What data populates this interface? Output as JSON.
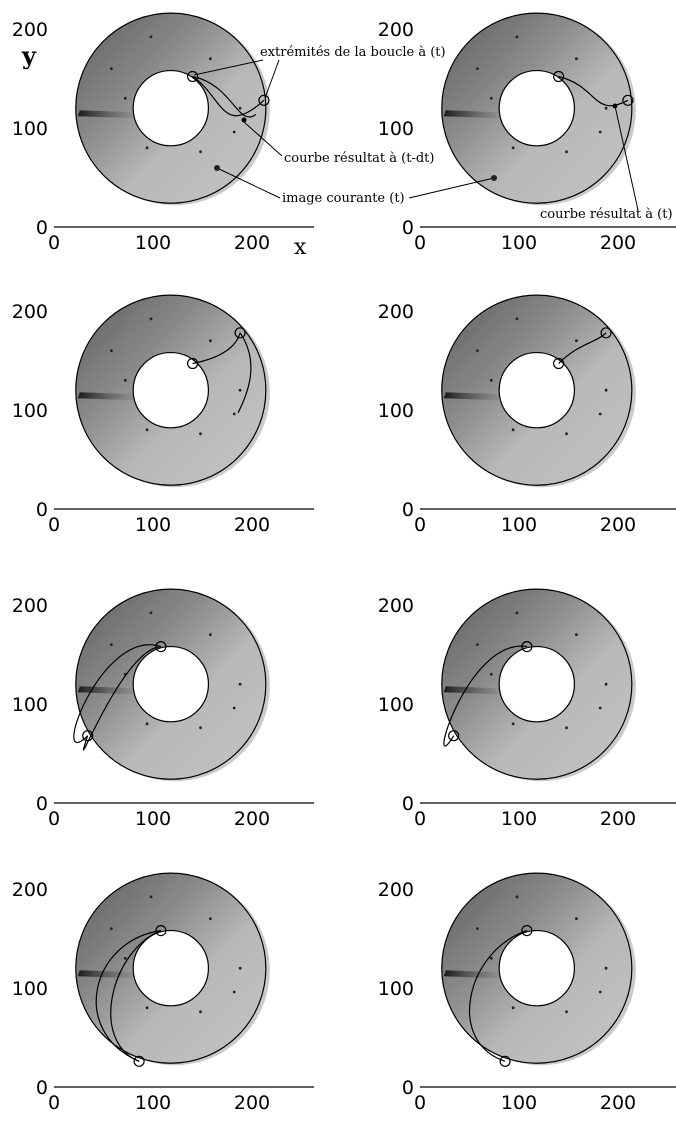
{
  "figure": {
    "axis_labels": {
      "y": "y",
      "x": "x"
    },
    "x_ticks": [
      "0",
      "100",
      "200"
    ],
    "y_ticks": [
      "0",
      "100",
      "200"
    ],
    "annotations": {
      "loop_ends": "extrémités de la boucle à (t)",
      "result_prev": "courbe résultat à (t-dt)",
      "current_image": "image courante (t)",
      "result_now": "courbe résultat à (t)"
    },
    "colors": {
      "ring_light": "#bdbdbd",
      "ring_dark": "#6a6a6a",
      "curve": "#000000",
      "band": "#2a2a2a"
    }
  },
  "chart_data": [
    {
      "type": "scatter",
      "xlim": [
        0,
        250
      ],
      "ylim": [
        0,
        210
      ],
      "ring": {
        "center": [
          118,
          120
        ],
        "inner_radius": 38,
        "outer_radius": 96
      },
      "loop_endpoints": [
        [
          140,
          152
        ],
        [
          212,
          128
        ]
      ],
      "curves": [
        "previous",
        "result"
      ]
    },
    {
      "type": "scatter",
      "xlim": [
        0,
        250
      ],
      "ylim": [
        0,
        210
      ],
      "ring": {
        "center": [
          118,
          120
        ],
        "inner_radius": 38,
        "outer_radius": 96
      },
      "loop_endpoints": [
        [
          140,
          152
        ],
        [
          210,
          128
        ]
      ],
      "curves": [
        "result"
      ]
    },
    {
      "type": "scatter",
      "xlim": [
        0,
        250
      ],
      "ylim": [
        0,
        210
      ],
      "ring": {
        "center": [
          118,
          120
        ],
        "inner_radius": 38,
        "outer_radius": 96
      },
      "loop_endpoints": [
        [
          140,
          147
        ],
        [
          188,
          178
        ]
      ],
      "curves": [
        "previous",
        "result"
      ]
    },
    {
      "type": "scatter",
      "xlim": [
        0,
        250
      ],
      "ylim": [
        0,
        210
      ],
      "ring": {
        "center": [
          118,
          120
        ],
        "inner_radius": 38,
        "outer_radius": 96
      },
      "loop_endpoints": [
        [
          140,
          147
        ],
        [
          188,
          178
        ]
      ],
      "curves": [
        "result"
      ]
    },
    {
      "type": "scatter",
      "xlim": [
        0,
        250
      ],
      "ylim": [
        0,
        210
      ],
      "ring": {
        "center": [
          118,
          120
        ],
        "inner_radius": 38,
        "outer_radius": 96
      },
      "loop_endpoints": [
        [
          108,
          158
        ],
        [
          34,
          68
        ]
      ],
      "curves": [
        "previous",
        "result"
      ]
    },
    {
      "type": "scatter",
      "xlim": [
        0,
        250
      ],
      "ylim": [
        0,
        210
      ],
      "ring": {
        "center": [
          118,
          120
        ],
        "inner_radius": 38,
        "outer_radius": 96
      },
      "loop_endpoints": [
        [
          108,
          158
        ],
        [
          34,
          68
        ]
      ],
      "curves": [
        "result"
      ]
    },
    {
      "type": "scatter",
      "xlim": [
        0,
        250
      ],
      "ylim": [
        0,
        210
      ],
      "ring": {
        "center": [
          118,
          120
        ],
        "inner_radius": 38,
        "outer_radius": 96
      },
      "loop_endpoints": [
        [
          108,
          158
        ],
        [
          86,
          26
        ]
      ],
      "curves": [
        "previous",
        "result"
      ]
    },
    {
      "type": "scatter",
      "xlim": [
        0,
        250
      ],
      "ylim": [
        0,
        210
      ],
      "ring": {
        "center": [
          118,
          120
        ],
        "inner_radius": 38,
        "outer_radius": 96
      },
      "loop_endpoints": [
        [
          108,
          158
        ],
        [
          86,
          26
        ]
      ],
      "curves": [
        "result"
      ]
    }
  ]
}
